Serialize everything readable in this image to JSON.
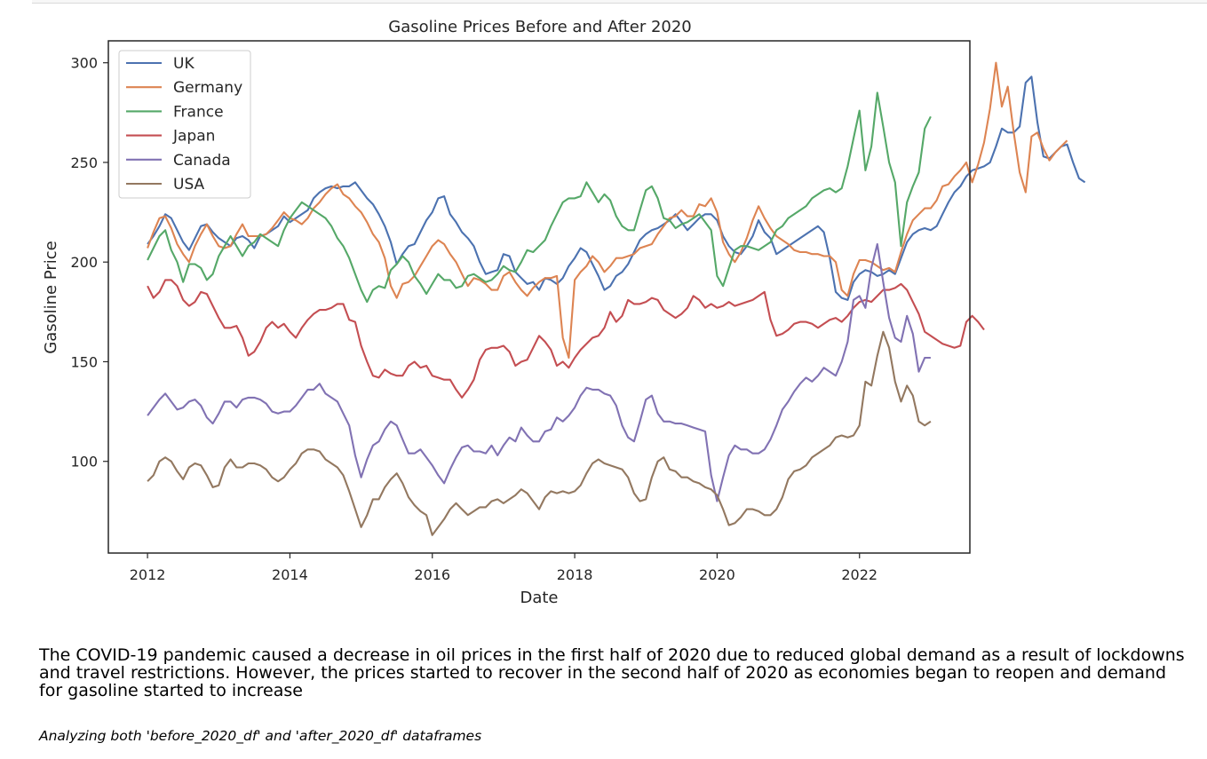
{
  "chart_data": {
    "type": "line",
    "title": "Gasoline Prices Before and After 2020",
    "xlabel": "Date",
    "ylabel": "Gasoline Price",
    "xlim": [
      2011.45,
      2023.55
    ],
    "ylim": [
      54,
      311
    ],
    "xticks": [
      2012,
      2014,
      2016,
      2018,
      2020,
      2022
    ],
    "yticks": [
      100,
      150,
      200,
      250,
      300
    ],
    "grid": false,
    "legend_position": "top-left",
    "x_start": 2012.0,
    "x_step": 0.08333,
    "series": [
      {
        "name": "UK",
        "color": "#4c72b0",
        "values": [
          209,
          213,
          218,
          224,
          222,
          216,
          210,
          206,
          212,
          218,
          219,
          215,
          212,
          210,
          208,
          212,
          213,
          211,
          207,
          213,
          214,
          216,
          218,
          223,
          220,
          222,
          224,
          226,
          232,
          235,
          237,
          238,
          237,
          238,
          238,
          240,
          236,
          232,
          229,
          224,
          218,
          210,
          199,
          204,
          208,
          209,
          215,
          221,
          225,
          232,
          233,
          224,
          220,
          215,
          212,
          208,
          200,
          194,
          195,
          196,
          204,
          203,
          195,
          192,
          189,
          190,
          186,
          192,
          191,
          189,
          192,
          198,
          202,
          207,
          205,
          199,
          193,
          186,
          188,
          193,
          195,
          199,
          205,
          211,
          214,
          216,
          217,
          219,
          221,
          224,
          220,
          216,
          219,
          222,
          224,
          224,
          221,
          213,
          208,
          205,
          204,
          208,
          213,
          221,
          215,
          212,
          204,
          206,
          208,
          210,
          212,
          214,
          216,
          218,
          215,
          202,
          185,
          182,
          181,
          190,
          194,
          196,
          195,
          193,
          194,
          196,
          194,
          202,
          210,
          214,
          216,
          217,
          216,
          218,
          224,
          230,
          235,
          238,
          243,
          246,
          247,
          248,
          250,
          258,
          267,
          265,
          265,
          268,
          290,
          293,
          270,
          253,
          252,
          255,
          258,
          259,
          250,
          242,
          240
        ]
      },
      {
        "name": "Germany",
        "color": "#dd8452",
        "values": [
          207,
          215,
          222,
          223,
          217,
          209,
          204,
          200,
          208,
          214,
          219,
          213,
          208,
          207,
          208,
          214,
          219,
          213,
          213,
          213,
          214,
          217,
          221,
          225,
          222,
          221,
          219,
          222,
          227,
          230,
          234,
          237,
          239,
          234,
          232,
          228,
          225,
          220,
          214,
          210,
          202,
          188,
          182,
          189,
          190,
          193,
          198,
          203,
          208,
          211,
          209,
          204,
          200,
          194,
          188,
          192,
          191,
          189,
          186,
          186,
          193,
          195,
          190,
          186,
          183,
          187,
          190,
          192,
          192,
          193,
          162,
          152,
          191,
          195,
          198,
          203,
          200,
          195,
          198,
          202,
          202,
          203,
          204,
          207,
          208,
          209,
          214,
          218,
          222,
          223,
          226,
          223,
          223,
          229,
          228,
          232,
          225,
          210,
          204,
          200,
          205,
          212,
          221,
          228,
          222,
          217,
          213,
          211,
          209,
          206,
          205,
          205,
          204,
          204,
          203,
          203,
          200,
          186,
          183,
          194,
          201,
          201,
          200,
          198,
          196,
          197,
          195,
          205,
          214,
          221,
          224,
          227,
          227,
          231,
          238,
          239,
          243,
          246,
          250,
          240,
          249,
          260,
          277,
          300,
          278,
          288,
          265,
          245,
          235,
          263,
          265,
          257,
          251,
          255,
          258,
          261
        ]
      },
      {
        "name": "France",
        "color": "#55a868",
        "values": [
          201,
          207,
          213,
          216,
          206,
          200,
          190,
          199,
          199,
          197,
          191,
          194,
          203,
          208,
          213,
          208,
          203,
          208,
          210,
          214,
          212,
          210,
          208,
          216,
          222,
          226,
          230,
          228,
          226,
          224,
          222,
          218,
          212,
          208,
          202,
          194,
          186,
          180,
          186,
          188,
          187,
          196,
          199,
          203,
          200,
          193,
          189,
          184,
          189,
          194,
          191,
          191,
          187,
          188,
          193,
          194,
          192,
          190,
          191,
          194,
          198,
          196,
          195,
          200,
          206,
          205,
          208,
          211,
          218,
          224,
          230,
          232,
          232,
          233,
          240,
          235,
          230,
          234,
          231,
          223,
          218,
          216,
          216,
          226,
          236,
          238,
          232,
          222,
          221,
          217,
          219,
          220,
          222,
          224,
          220,
          216,
          193,
          188,
          197,
          206,
          208,
          208,
          207,
          206,
          208,
          210,
          216,
          218,
          222,
          224,
          226,
          228,
          232,
          234,
          236,
          237,
          235,
          237,
          248,
          262,
          276,
          246,
          258,
          285,
          268,
          250,
          240,
          208,
          230,
          238,
          245,
          267,
          273
        ]
      },
      {
        "name": "Japan",
        "color": "#c44e52",
        "values": [
          188,
          182,
          185,
          191,
          191,
          188,
          181,
          178,
          180,
          185,
          184,
          178,
          172,
          167,
          167,
          168,
          162,
          153,
          155,
          160,
          167,
          170,
          167,
          169,
          165,
          162,
          167,
          171,
          174,
          176,
          176,
          177,
          179,
          179,
          171,
          170,
          158,
          150,
          143,
          142,
          146,
          144,
          143,
          143,
          148,
          150,
          147,
          148,
          143,
          142,
          141,
          141,
          136,
          132,
          136,
          141,
          151,
          156,
          157,
          157,
          158,
          155,
          148,
          150,
          151,
          157,
          163,
          160,
          156,
          148,
          150,
          147,
          152,
          156,
          159,
          162,
          163,
          167,
          175,
          170,
          173,
          181,
          179,
          179,
          180,
          182,
          181,
          176,
          174,
          172,
          174,
          177,
          183,
          181,
          177,
          179,
          177,
          178,
          180,
          178,
          179,
          180,
          181,
          183,
          185,
          171,
          163,
          164,
          166,
          169,
          170,
          170,
          169,
          167,
          169,
          171,
          172,
          170,
          173,
          177,
          180,
          181,
          180,
          183,
          186,
          186,
          187,
          189,
          186,
          180,
          174,
          165,
          163,
          161,
          159,
          158,
          157,
          158,
          170,
          173,
          170,
          166
        ]
      },
      {
        "name": "Canada",
        "color": "#8172b3",
        "values": [
          123,
          127,
          131,
          134,
          130,
          126,
          127,
          130,
          131,
          128,
          122,
          119,
          124,
          130,
          130,
          127,
          131,
          132,
          132,
          131,
          129,
          125,
          124,
          125,
          125,
          128,
          132,
          136,
          136,
          139,
          134,
          132,
          130,
          124,
          118,
          103,
          92,
          101,
          108,
          110,
          116,
          120,
          118,
          111,
          104,
          104,
          106,
          102,
          98,
          93,
          89,
          96,
          102,
          107,
          108,
          105,
          105,
          104,
          108,
          103,
          108,
          112,
          110,
          117,
          113,
          110,
          110,
          115,
          116,
          122,
          120,
          123,
          127,
          133,
          137,
          136,
          136,
          134,
          133,
          128,
          118,
          112,
          110,
          120,
          131,
          133,
          124,
          120,
          120,
          119,
          119,
          118,
          117,
          116,
          115,
          93,
          80,
          92,
          103,
          108,
          106,
          106,
          104,
          104,
          106,
          111,
          118,
          126,
          130,
          135,
          139,
          142,
          140,
          143,
          147,
          145,
          143,
          150,
          160,
          181,
          183,
          177,
          197,
          209,
          190,
          172,
          162,
          160,
          173,
          164,
          145,
          152,
          152
        ]
      },
      {
        "name": "USA",
        "color": "#937860",
        "values": [
          90,
          93,
          100,
          102,
          100,
          95,
          91,
          97,
          99,
          98,
          93,
          87,
          88,
          97,
          101,
          97,
          97,
          99,
          99,
          98,
          96,
          92,
          90,
          92,
          96,
          99,
          104,
          106,
          106,
          105,
          101,
          99,
          97,
          93,
          85,
          76,
          67,
          73,
          81,
          81,
          87,
          91,
          94,
          89,
          82,
          78,
          75,
          73,
          63,
          67,
          71,
          76,
          79,
          76,
          73,
          75,
          77,
          77,
          80,
          81,
          79,
          81,
          83,
          86,
          84,
          80,
          76,
          82,
          85,
          84,
          85,
          84,
          85,
          88,
          94,
          99,
          101,
          99,
          98,
          97,
          96,
          92,
          84,
          80,
          81,
          92,
          100,
          102,
          96,
          95,
          92,
          92,
          90,
          89,
          87,
          86,
          83,
          76,
          68,
          69,
          72,
          76,
          76,
          75,
          73,
          73,
          76,
          82,
          91,
          95,
          96,
          98,
          102,
          104,
          106,
          108,
          112,
          113,
          112,
          113,
          118,
          140,
          138,
          153,
          165,
          157,
          140,
          130,
          138,
          133,
          120,
          118,
          120
        ]
      }
    ]
  },
  "markdown": {
    "paragraph": "The COVID-19 pandemic caused a decrease in oil prices in the first half of 2020 due to reduced global demand as a result of lockdowns and travel restrictions. However, the prices started to recover in the second half of 2020 as economies began to reopen and demand for gasoline started to increase",
    "italic_note": "Analyzing both 'before_2020_df' and 'after_2020_df' dataframes"
  }
}
